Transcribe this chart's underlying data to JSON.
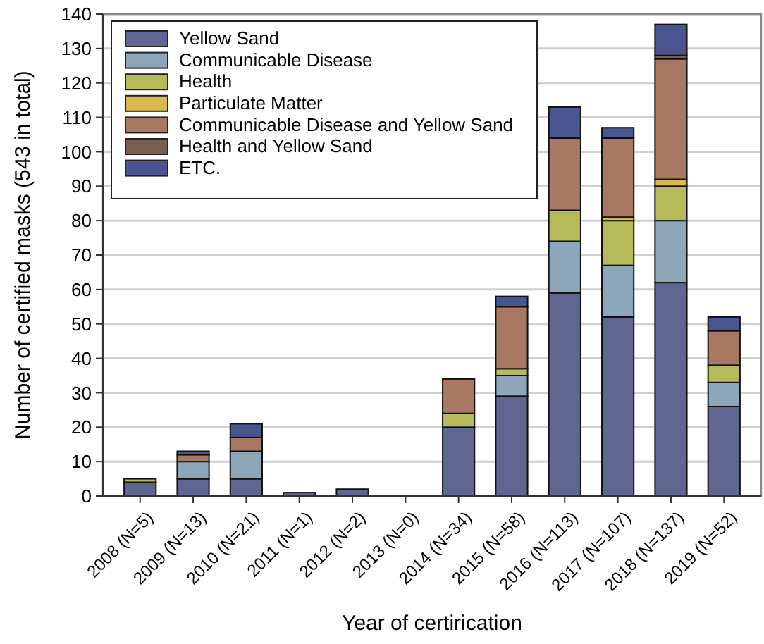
{
  "chart_data": {
    "type": "bar",
    "stacked": true,
    "xlabel": "Year of certirication",
    "ylabel": "Number of certified masks (543 in total)",
    "categories": [
      "2008 (N=5)",
      "2009 (N=13)",
      "2010 (N=21)",
      "2011 (N=1)",
      "2012 (N=2)",
      "2013 (N=0)",
      "2014 (N=34)",
      "2015 (N=58)",
      "2016 (N=113)",
      "2017 (N=107)",
      "2018 (N=137)",
      "2019 (N=52)"
    ],
    "series": [
      {
        "name": "Yellow Sand",
        "color": "#5f6690",
        "values": [
          4,
          5,
          5,
          1,
          2,
          0,
          20,
          29,
          59,
          52,
          62,
          26
        ]
      },
      {
        "name": "Communicable Disease",
        "color": "#8ea6ba",
        "values": [
          0,
          5,
          8,
          0,
          0,
          0,
          0,
          6,
          15,
          15,
          18,
          7
        ]
      },
      {
        "name": "Health",
        "color": "#b5bb5a",
        "values": [
          1,
          0,
          0,
          0,
          0,
          0,
          4,
          2,
          9,
          13,
          10,
          5
        ]
      },
      {
        "name": "Particulate Matter",
        "color": "#d8ba4c",
        "values": [
          0,
          0,
          0,
          0,
          0,
          0,
          0,
          0,
          0,
          1,
          2,
          0
        ]
      },
      {
        "name": "Communicable Disease and Yellow Sand",
        "color": "#a87862",
        "values": [
          0,
          2,
          4,
          0,
          0,
          0,
          10,
          18,
          21,
          23,
          35,
          10
        ]
      },
      {
        "name": "Health and Yellow Sand",
        "color": "#7a5f50",
        "values": [
          0,
          0,
          0,
          0,
          0,
          0,
          0,
          0,
          0,
          0,
          1,
          0
        ]
      },
      {
        "name": "ETC.",
        "color": "#4a5590",
        "values": [
          0,
          1,
          4,
          0,
          0,
          0,
          0,
          3,
          9,
          3,
          9,
          4
        ]
      }
    ],
    "ylim": [
      0,
      140
    ],
    "yticks": [
      0,
      10,
      20,
      30,
      40,
      50,
      60,
      70,
      80,
      90,
      100,
      110,
      120,
      130,
      140
    ],
    "grid": "y",
    "legend": "top left"
  }
}
